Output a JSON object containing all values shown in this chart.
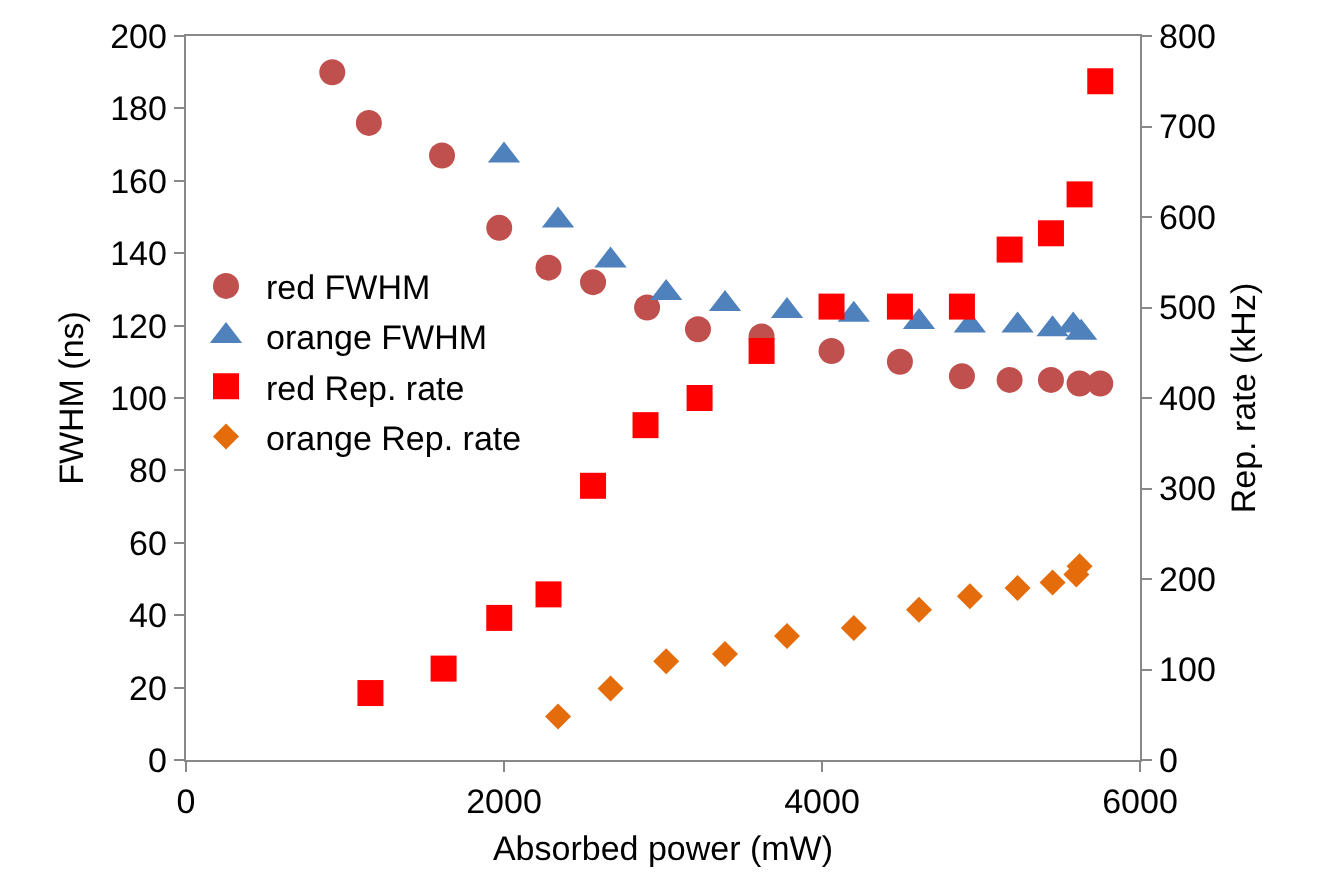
{
  "chart_data": {
    "type": "scatter",
    "xlabel": "Absorbed power (mW)",
    "ylabel": "FWHM (ns)",
    "y2label": "Rep. rate (kHz)",
    "xlim": [
      0,
      6000
    ],
    "xticks": [
      0,
      2000,
      4000,
      6000
    ],
    "ylim": [
      0,
      200
    ],
    "yticks": [
      0,
      20,
      40,
      60,
      80,
      100,
      120,
      140,
      160,
      180,
      200
    ],
    "y2lim": [
      0,
      800
    ],
    "y2ticks": [
      0,
      100,
      200,
      300,
      400,
      500,
      600,
      700,
      800
    ],
    "grid": false,
    "legend": "left",
    "series": [
      {
        "name": "red FWHM",
        "color": "#c0504d",
        "marker": "circle",
        "x": [
          920,
          1150,
          1610,
          1970,
          2280,
          2560,
          2900,
          3220,
          3620,
          4060,
          4490,
          4880,
          5180,
          5440,
          5620,
          5750
        ],
        "values": [
          190,
          176,
          167,
          147,
          136,
          132,
          125,
          119,
          117,
          113,
          110,
          106,
          105,
          105,
          104,
          104
        ]
      },
      {
        "name": "orange FWHM",
        "color": "#4f81bd",
        "marker": "triangle",
        "x": [
          2000,
          2340,
          2670,
          3020,
          3390,
          3780,
          4200,
          4610,
          4930,
          5230,
          5450,
          5580,
          5630
        ],
        "values": [
          167,
          149,
          138,
          129,
          126,
          124,
          123,
          121,
          120,
          120,
          119,
          120,
          118
        ]
      },
      {
        "name": "red Rep. rate",
        "color": "#ff0000",
        "marker": "square",
        "axis": "y2",
        "x": [
          1160,
          1620,
          1970,
          2280,
          2560,
          2890,
          3230,
          3620,
          4060,
          4490,
          4880,
          5180,
          5440,
          5620,
          5750
        ],
        "values": [
          74,
          101,
          157,
          183,
          303,
          370,
          400,
          452,
          501,
          501,
          501,
          564,
          582,
          625,
          750
        ]
      },
      {
        "name": "orange Rep. rate",
        "color": "#e46c0a",
        "marker": "diamond",
        "axis": "y2",
        "x": [
          2340,
          2670,
          3020,
          3390,
          3780,
          4200,
          4610,
          4930,
          5230,
          5450,
          5600,
          5620
        ],
        "values": [
          48,
          79,
          109,
          117,
          137,
          146,
          166,
          181,
          190,
          196,
          205,
          214
        ]
      }
    ]
  }
}
